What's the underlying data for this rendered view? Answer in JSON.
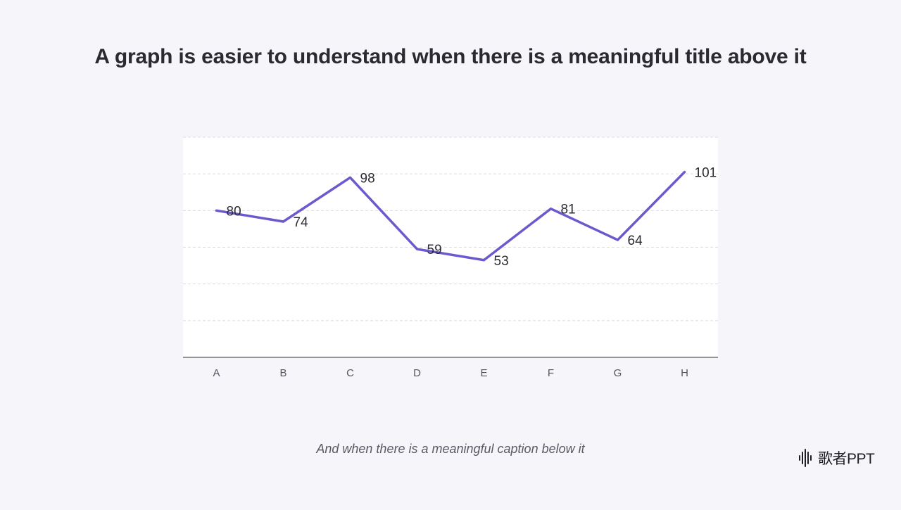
{
  "slide": {
    "title": "A graph is easier to understand when there is a meaningful title above it",
    "caption": "And when there is a meaningful caption below it",
    "logo_text": "歌者PPT",
    "logo_icon": "soundwave-icon"
  },
  "colors": {
    "line": "#6a5acd",
    "grid": "#dcdce4",
    "axis": "#333333",
    "plot_bg": "#ffffff",
    "page_bg": "#f5f5fa"
  },
  "chart_data": {
    "type": "line",
    "categories": [
      "A",
      "B",
      "C",
      "D",
      "E",
      "F",
      "G",
      "H"
    ],
    "values": [
      80,
      74,
      98,
      59,
      53,
      81,
      64,
      101
    ],
    "data_labels": [
      "80",
      "74",
      "98",
      "59",
      "53",
      "81",
      "64",
      "101"
    ],
    "title": "A graph is easier to understand when there is a meaningful title above it",
    "xlabel": "",
    "ylabel": "",
    "ylim": [
      0,
      120
    ],
    "grid": true,
    "y_tick_labels_visible": false
  }
}
